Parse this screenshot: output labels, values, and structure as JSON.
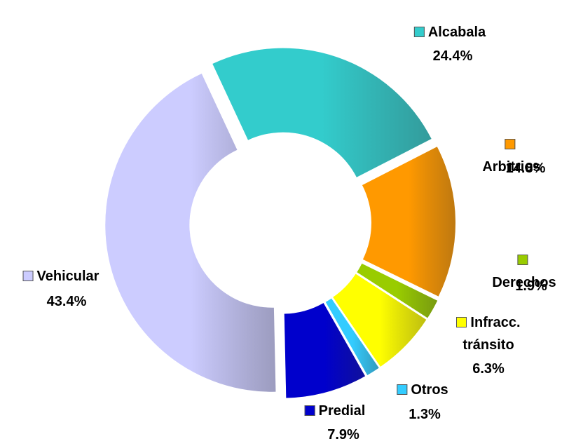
{
  "chart_data": {
    "type": "donut",
    "categories": [
      "Alcabala",
      "Arbitrios",
      "Derechos",
      "Infracc. tránsito",
      "Otros",
      "Predial",
      "Vehicular"
    ],
    "values": [
      24.4,
      14.8,
      1.9,
      6.3,
      1.3,
      7.9,
      43.4
    ],
    "value_labels": [
      "24.4%",
      "14.8%",
      "1.9%",
      "6.3%",
      "1.3%",
      "7.9%",
      "43.4%"
    ],
    "colors": [
      "#33cccc",
      "#ff9900",
      "#99cc00",
      "#ffff00",
      "#33ccff",
      "#0000cc",
      "#ccccff"
    ]
  }
}
